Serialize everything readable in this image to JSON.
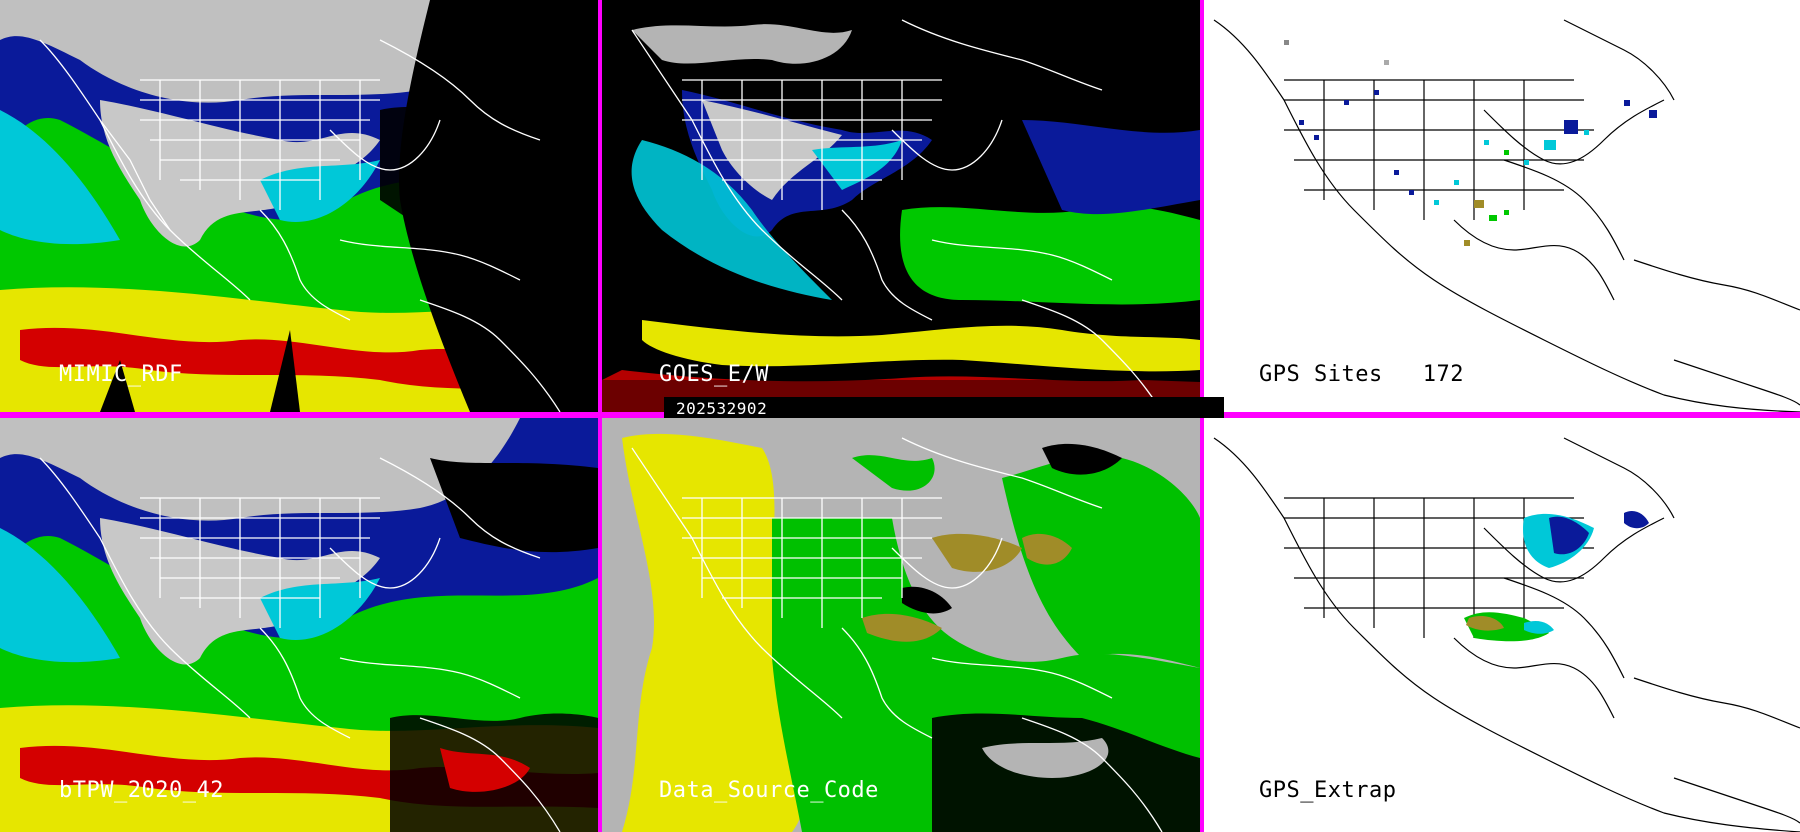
{
  "panels": {
    "mimic": {
      "label": "MIMIC_RDF"
    },
    "goes": {
      "label": "GOES_E/W"
    },
    "gps_sites": {
      "label": "GPS Sites",
      "count": "172"
    },
    "btpw": {
      "label": "bTPW_2020_42"
    },
    "data_source": {
      "label": "Data_Source_Code"
    },
    "gps_extrap": {
      "label": "GPS_Extrap"
    }
  },
  "timestamp": "202532902",
  "colors": {
    "divider": "#ff00ff",
    "very_dry": "#000000",
    "dry": "#c8c8c8",
    "low": "#0a1a9a",
    "mid_low": "#00c8d8",
    "mid": "#00c800",
    "mid_high": "#e6e600",
    "high": "#d40000",
    "source_gray": "#b4b4b4",
    "source_yellow": "#e6e600",
    "source_green": "#00c000",
    "source_olive": "#a08c28"
  }
}
